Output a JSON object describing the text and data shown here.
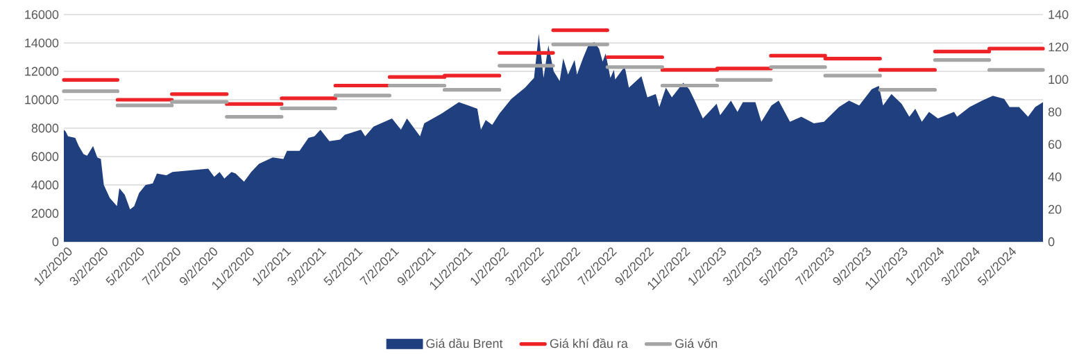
{
  "chart_data": {
    "type": "line",
    "xlim": [
      "2020-01-02",
      "2024-06-30"
    ],
    "xticks": [
      {
        "value": "2020-01-02",
        "label": "1/2/2020"
      },
      {
        "value": "2020-03-02",
        "label": "3/2/2020"
      },
      {
        "value": "2020-05-02",
        "label": "5/2/2020"
      },
      {
        "value": "2020-07-02",
        "label": "7/2/2020"
      },
      {
        "value": "2020-09-02",
        "label": "9/2/2020"
      },
      {
        "value": "2020-11-02",
        "label": "11/2/2020"
      },
      {
        "value": "2021-01-02",
        "label": "1/2/2021"
      },
      {
        "value": "2021-03-02",
        "label": "3/2/2021"
      },
      {
        "value": "2021-05-02",
        "label": "5/2/2021"
      },
      {
        "value": "2021-07-02",
        "label": "7/2/2021"
      },
      {
        "value": "2021-09-02",
        "label": "9/2/2021"
      },
      {
        "value": "2021-11-02",
        "label": "11/2/2021"
      },
      {
        "value": "2022-01-02",
        "label": "1/2/2022"
      },
      {
        "value": "2022-03-02",
        "label": "3/2/2022"
      },
      {
        "value": "2022-05-02",
        "label": "5/2/2022"
      },
      {
        "value": "2022-07-02",
        "label": "7/2/2022"
      },
      {
        "value": "2022-09-02",
        "label": "9/2/2022"
      },
      {
        "value": "2022-11-02",
        "label": "11/2/2022"
      },
      {
        "value": "2023-01-02",
        "label": "1/2/2023"
      },
      {
        "value": "2023-03-02",
        "label": "3/2/2023"
      },
      {
        "value": "2023-05-02",
        "label": "5/2/2023"
      },
      {
        "value": "2023-07-02",
        "label": "7/2/2023"
      },
      {
        "value": "2023-09-02",
        "label": "9/2/2023"
      },
      {
        "value": "2023-11-02",
        "label": "11/2/2023"
      },
      {
        "value": "2024-01-02",
        "label": "1/2/2024"
      },
      {
        "value": "2024-03-02",
        "label": "3/2/2024"
      },
      {
        "value": "2024-05-02",
        "label": "5/2/2024"
      }
    ],
    "ylim": [
      0,
      16000
    ],
    "yticks": [
      0,
      2000,
      4000,
      6000,
      8000,
      10000,
      12000,
      14000,
      16000
    ],
    "y2lim": [
      0,
      140
    ],
    "y2ticks": [
      0,
      20,
      40,
      60,
      80,
      100,
      120,
      140
    ],
    "grid": "y",
    "legend": "bottom",
    "series": [
      {
        "name": "Giá dầu Brent",
        "type": "area",
        "axis": "y2",
        "color": "#203f7f",
        "x": [
          "2020-01-02",
          "2020-01-05",
          "2020-01-09",
          "2020-01-21",
          "2020-01-27",
          "2020-02-04",
          "2020-02-10",
          "2020-02-20",
          "2020-02-27",
          "2020-03-04",
          "2020-03-09",
          "2020-03-19",
          "2020-03-31",
          "2020-04-04",
          "2020-04-13",
          "2020-04-22",
          "2020-04-29",
          "2020-05-07",
          "2020-05-18",
          "2020-05-30",
          "2020-06-06",
          "2020-06-22",
          "2020-07-02",
          "2020-07-31",
          "2020-08-31",
          "2020-09-10",
          "2020-09-19",
          "2020-09-27",
          "2020-10-09",
          "2020-10-16",
          "2020-10-30",
          "2020-11-11",
          "2020-11-24",
          "2020-12-17",
          "2021-01-04",
          "2021-01-10",
          "2021-01-31",
          "2021-02-15",
          "2021-02-25",
          "2021-03-07",
          "2021-03-22",
          "2021-04-09",
          "2021-04-17",
          "2021-05-14",
          "2021-05-21",
          "2021-06-04",
          "2021-07-05",
          "2021-07-20",
          "2021-07-30",
          "2021-08-21",
          "2021-08-28",
          "2021-09-26",
          "2021-10-25",
          "2021-11-10",
          "2021-11-25",
          "2021-12-01",
          "2021-12-09",
          "2021-12-20",
          "2022-01-01",
          "2022-01-21",
          "2022-02-13",
          "2022-02-28",
          "2022-03-08",
          "2022-03-16",
          "2022-03-24",
          "2022-04-02",
          "2022-04-12",
          "2022-04-18",
          "2022-04-26",
          "2022-05-07",
          "2022-05-11",
          "2022-05-21",
          "2022-05-30",
          "2022-06-09",
          "2022-06-17",
          "2022-06-23",
          "2022-06-28",
          "2022-07-06",
          "2022-07-12",
          "2022-07-14",
          "2022-07-30",
          "2022-08-06",
          "2022-08-27",
          "2022-09-06",
          "2022-09-20",
          "2022-09-26",
          "2022-10-07",
          "2022-10-17",
          "2022-11-05",
          "2022-11-15",
          "2022-11-23",
          "2022-12-08",
          "2022-12-31",
          "2023-01-06",
          "2023-01-24",
          "2023-02-04",
          "2023-02-13",
          "2023-03-06",
          "2023-03-16",
          "2023-04-02",
          "2023-04-14",
          "2023-05-03",
          "2023-05-22",
          "2023-06-12",
          "2023-06-29",
          "2023-07-24",
          "2023-08-10",
          "2023-08-27",
          "2023-09-17",
          "2023-09-29",
          "2023-10-06",
          "2023-10-20",
          "2023-11-06",
          "2023-11-19",
          "2023-11-29",
          "2023-12-10",
          "2023-12-22",
          "2024-01-06",
          "2024-02-02",
          "2024-02-07",
          "2024-02-28",
          "2024-03-20",
          "2024-04-07",
          "2024-04-26",
          "2024-05-05",
          "2024-05-21",
          "2024-06-05",
          "2024-06-17",
          "2024-06-30"
        ],
        "values": [
          69,
          68,
          65,
          64,
          59,
          54,
          53,
          59,
          52,
          51,
          35,
          27,
          22,
          33,
          29,
          20,
          22,
          30,
          35,
          36,
          42,
          41,
          43,
          44,
          45,
          40,
          43,
          39,
          43,
          42,
          37,
          43,
          48,
          52,
          51,
          56,
          56,
          64,
          65,
          69,
          62,
          63,
          66,
          69,
          65,
          71,
          76,
          69,
          76,
          65,
          73,
          79,
          86,
          84,
          82,
          69,
          75,
          72,
          79,
          88,
          95,
          101,
          128,
          101,
          121,
          105,
          99,
          113,
          103,
          112,
          103,
          113,
          121,
          123,
          119,
          111,
          116,
          101,
          106,
          100,
          108,
          95,
          102,
          89,
          91,
          83,
          95,
          89,
          98,
          94,
          88,
          76,
          85,
          78,
          87,
          80,
          86,
          86,
          74,
          84,
          87,
          74,
          77,
          73,
          74,
          83,
          87,
          84,
          94,
          96,
          84,
          91,
          85,
          77,
          82,
          74,
          80,
          76,
          80,
          77,
          83,
          87,
          90,
          88,
          83,
          83,
          77,
          83,
          86
        ]
      },
      {
        "name": "Giá khí đầu ra",
        "color": "#ee2328",
        "x": [
          "2020-01-02",
          "2020-04-01",
          null,
          "2020-04-01",
          "2020-07-01",
          null,
          "2020-07-01",
          "2020-10-01",
          null,
          "2020-10-01",
          "2021-01-01",
          null,
          "2021-01-01",
          "2021-04-01",
          null,
          "2021-04-01",
          "2021-07-01",
          null,
          "2021-07-01",
          "2021-10-01",
          null,
          "2021-10-01",
          "2022-01-01",
          null,
          "2022-01-01",
          "2022-04-01",
          null,
          "2022-04-01",
          "2022-07-01",
          null,
          "2022-07-01",
          "2022-10-01",
          null,
          "2022-10-01",
          "2023-01-01",
          null,
          "2023-01-01",
          "2023-04-01",
          null,
          "2023-04-01",
          "2023-07-01",
          null,
          "2023-07-01",
          "2023-10-01",
          null,
          "2023-10-01",
          "2024-01-01",
          null,
          "2024-01-01",
          "2024-04-01",
          null,
          "2024-04-01",
          "2024-06-30"
        ],
        "values": [
          11400,
          11400,
          null,
          10000,
          10000,
          null,
          10400,
          10400,
          null,
          9700,
          9700,
          null,
          10100,
          10100,
          null,
          11000,
          11000,
          null,
          11600,
          11600,
          null,
          11700,
          11700,
          null,
          13300,
          13300,
          null,
          14900,
          14900,
          null,
          13000,
          13000,
          null,
          12100,
          12100,
          null,
          12200,
          12200,
          null,
          13100,
          13100,
          null,
          12900,
          12900,
          null,
          12100,
          12100,
          null,
          13400,
          13400,
          null,
          13600,
          13600
        ]
      },
      {
        "name": "Giá vốn",
        "color": "#a5a5a5",
        "x": [
          "2020-01-02",
          "2020-04-01",
          null,
          "2020-04-01",
          "2020-07-01",
          null,
          "2020-07-01",
          "2020-10-01",
          null,
          "2020-10-01",
          "2021-01-01",
          null,
          "2021-01-01",
          "2021-04-01",
          null,
          "2021-04-01",
          "2021-07-01",
          null,
          "2021-07-01",
          "2021-10-01",
          null,
          "2021-10-01",
          "2022-01-01",
          null,
          "2022-01-01",
          "2022-04-01",
          null,
          "2022-04-01",
          "2022-07-01",
          null,
          "2022-07-01",
          "2022-10-01",
          null,
          "2022-10-01",
          "2023-01-01",
          null,
          "2023-01-01",
          "2023-04-01",
          null,
          "2023-04-01",
          "2023-07-01",
          null,
          "2023-07-01",
          "2023-10-01",
          null,
          "2023-10-01",
          "2024-01-01",
          null,
          "2024-01-01",
          "2024-04-01",
          null,
          "2024-04-01",
          "2024-06-30"
        ],
        "values": [
          10600,
          10600,
          null,
          9600,
          9600,
          null,
          9850,
          9850,
          null,
          8800,
          8800,
          null,
          9400,
          9400,
          null,
          10300,
          10300,
          null,
          11000,
          11000,
          null,
          10700,
          10700,
          null,
          12400,
          12400,
          null,
          13900,
          13900,
          null,
          12300,
          12300,
          null,
          11000,
          11000,
          null,
          11400,
          11400,
          null,
          12300,
          12300,
          null,
          11700,
          11700,
          null,
          10700,
          10700,
          null,
          12800,
          12800,
          null,
          12100,
          12100
        ]
      }
    ]
  }
}
